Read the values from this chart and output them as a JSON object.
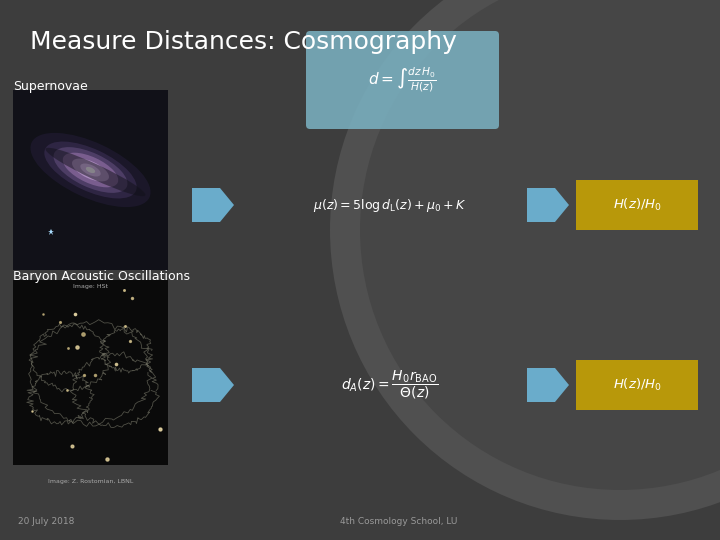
{
  "title": "Measure Distances: Cosmography",
  "bg_color": "#3d3d3d",
  "title_color": "#ffffff",
  "title_fontsize": 18,
  "label_supernovae": "Supernovae",
  "label_bao": "Baryon Acoustic Oscillations",
  "label_color": "#ffffff",
  "label_fontsize": 9,
  "footer_left": "20 July 2018",
  "footer_right": "4th Cosmology School, LU",
  "footer_color": "#999999",
  "footer_fontsize": 6.5,
  "image_caption_sn": "Image: HSt",
  "image_caption_bao": "Image: Z. Rostomian, LBNL",
  "caption_color": "#aaaaaa",
  "caption_fontsize": 4.5,
  "arrow_color": "#6aaccb",
  "box_formula_color": "#7ab0c0",
  "box_result_color": "#b8980a",
  "circle_color": "#4a4a4a",
  "circle_outer": "#525252"
}
